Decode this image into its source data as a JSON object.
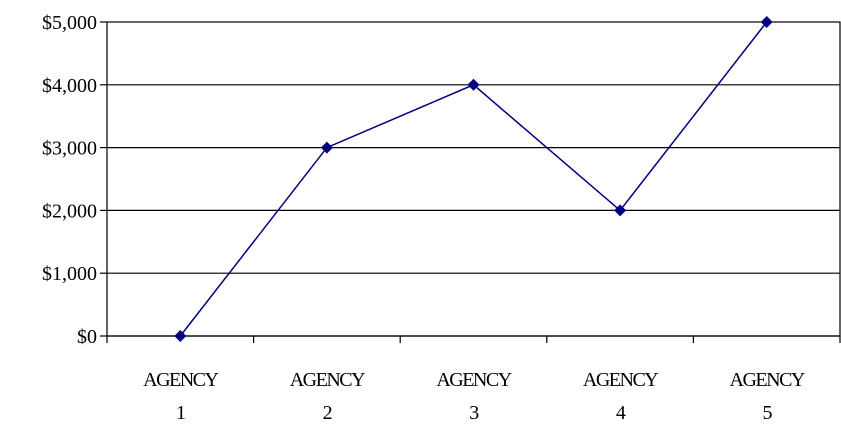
{
  "chart_data": {
    "type": "line",
    "title": "",
    "xlabel": "",
    "ylabel": "",
    "categories": [
      [
        "AGENCY",
        "1"
      ],
      [
        "AGENCY",
        "2"
      ],
      [
        "AGENCY",
        "3"
      ],
      [
        "AGENCY",
        "4"
      ],
      [
        "AGENCY",
        "5"
      ]
    ],
    "series": [
      {
        "values": [
          0,
          3000,
          4000,
          2000,
          5000
        ]
      }
    ],
    "ylim": [
      0,
      5000
    ],
    "yticks": [
      0,
      1000,
      2000,
      3000,
      4000,
      5000
    ],
    "ytick_labels": [
      "$0",
      "$1,000",
      "$2,000",
      "$3,000",
      "$4,000",
      "$5,000"
    ],
    "grid": true,
    "legend": "none",
    "colors": {
      "line": "#000080",
      "marker": "#000080",
      "grid": "#000000",
      "axis": "#000000"
    },
    "marker": "diamond"
  }
}
